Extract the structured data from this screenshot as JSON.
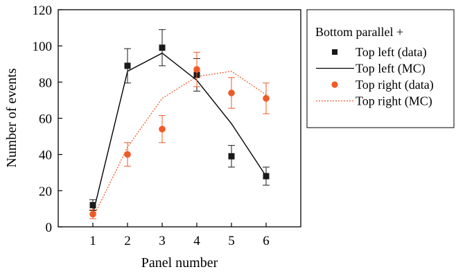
{
  "chart_data": {
    "type": "scatter",
    "xlabel": "Panel number",
    "ylabel": "Number of events",
    "xlim": [
      0,
      7
    ],
    "ylim": [
      0,
      120
    ],
    "x_ticks": [
      1,
      2,
      3,
      4,
      5,
      6
    ],
    "y_ticks": [
      0,
      20,
      40,
      60,
      80,
      100,
      120
    ],
    "grid": false,
    "legend_position": "outside-right",
    "legend_title": "Bottom parallel +",
    "series": [
      {
        "name": "Top left (data)",
        "kind": "points",
        "marker": "square",
        "color": "#1a1a1a",
        "x": [
          1,
          2,
          3,
          4,
          5,
          6
        ],
        "y": [
          12,
          89,
          99,
          84,
          39,
          28
        ],
        "err": [
          3,
          9.5,
          10,
          9,
          6,
          5
        ]
      },
      {
        "name": "Top left (MC)",
        "kind": "line",
        "style": "solid",
        "color": "#000000",
        "x": [
          1,
          2,
          3,
          4,
          5,
          6
        ],
        "y": [
          7,
          86,
          96,
          81,
          57,
          28
        ]
      },
      {
        "name": "Top right (data)",
        "kind": "points",
        "marker": "circle",
        "color": "#f05a28",
        "x": [
          1,
          2,
          3,
          4,
          5,
          6
        ],
        "y": [
          7,
          40,
          54,
          87,
          74,
          71
        ],
        "err": [
          2.5,
          6.5,
          7.5,
          9.5,
          8.5,
          8.5
        ]
      },
      {
        "name": "Top right (MC)",
        "kind": "line",
        "style": "dotted",
        "color": "#f05a28",
        "x": [
          1,
          2,
          3,
          4,
          5,
          6
        ],
        "y": [
          5,
          44,
          71,
          83,
          86,
          73
        ]
      }
    ]
  }
}
